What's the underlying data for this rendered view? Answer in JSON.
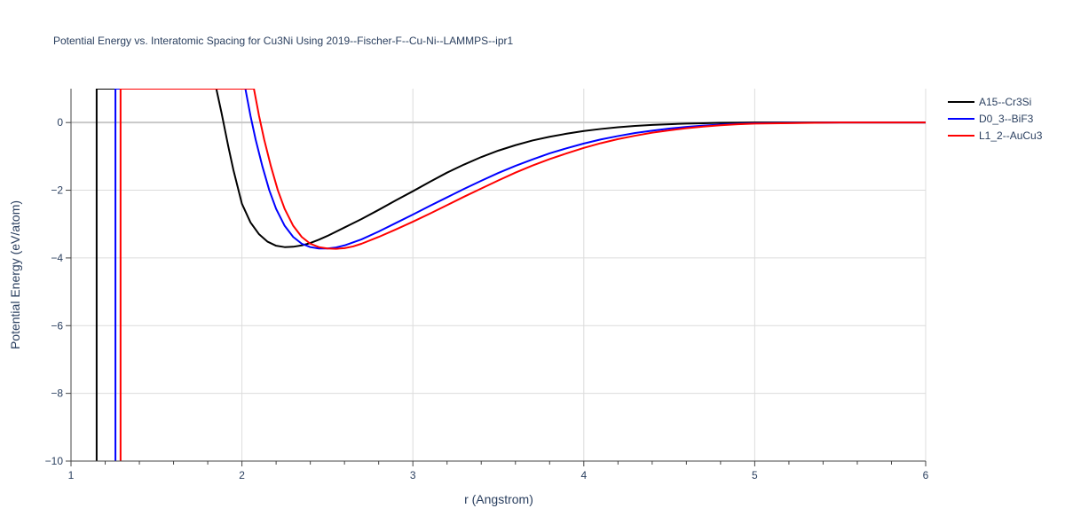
{
  "chart_data": {
    "type": "line",
    "title": "Potential Energy vs. Interatomic Spacing for Cu3Ni Using 2019--Fischer-F--Cu-Ni--LAMMPS--ipr1",
    "xlabel": "r (Angstrom)",
    "ylabel": "Potential Energy (eV/atom)",
    "xlim": [
      1,
      6
    ],
    "ylim": [
      -10,
      1
    ],
    "x_ticks": [
      1,
      2,
      3,
      4,
      5,
      6
    ],
    "x_tick_labels": [
      "1",
      "2",
      "3",
      "4",
      "5",
      "6"
    ],
    "y_ticks": [
      0,
      -2,
      -4,
      -6,
      -8,
      -10
    ],
    "y_tick_labels": [
      "0",
      "−2",
      "−4",
      "−6",
      "−8",
      "−10"
    ],
    "grid": true,
    "legend_position": "top-right",
    "series": [
      {
        "name": "A15--Cr3Si",
        "color": "#000000",
        "x": [
          1.15,
          1.15,
          1.85,
          1.88,
          1.9,
          1.92,
          1.95,
          2.0,
          2.05,
          2.1,
          2.15,
          2.2,
          2.25,
          2.3,
          2.35,
          2.4,
          2.45,
          2.5,
          2.6,
          2.7,
          2.8,
          2.9,
          3.0,
          3.1,
          3.2,
          3.3,
          3.4,
          3.5,
          3.6,
          3.7,
          3.8,
          3.9,
          4.0,
          4.1,
          4.2,
          4.3,
          4.4,
          4.5,
          4.6,
          4.7,
          4.8,
          4.9,
          5.0,
          5.5,
          6.0
        ],
        "y": [
          -10.0,
          1.0,
          1.0,
          0.3,
          -0.2,
          -0.7,
          -1.4,
          -2.4,
          -2.95,
          -3.3,
          -3.52,
          -3.64,
          -3.68,
          -3.67,
          -3.63,
          -3.56,
          -3.46,
          -3.35,
          -3.1,
          -2.85,
          -2.58,
          -2.3,
          -2.03,
          -1.75,
          -1.48,
          -1.24,
          -1.02,
          -0.83,
          -0.67,
          -0.53,
          -0.42,
          -0.33,
          -0.25,
          -0.19,
          -0.14,
          -0.1,
          -0.07,
          -0.05,
          -0.03,
          -0.02,
          -0.01,
          -0.005,
          0.0,
          0.0,
          0.0
        ]
      },
      {
        "name": "D0_3--BiF3",
        "color": "#0000ff",
        "x": [
          1.26,
          1.26,
          2.02,
          2.05,
          2.08,
          2.12,
          2.16,
          2.2,
          2.25,
          2.3,
          2.35,
          2.4,
          2.45,
          2.5,
          2.55,
          2.6,
          2.7,
          2.8,
          2.9,
          3.0,
          3.1,
          3.2,
          3.3,
          3.4,
          3.5,
          3.6,
          3.7,
          3.8,
          3.9,
          4.0,
          4.1,
          4.2,
          4.3,
          4.4,
          4.5,
          4.6,
          4.7,
          4.8,
          4.9,
          5.0,
          5.5,
          6.0
        ],
        "y": [
          -10.0,
          1.0,
          1.0,
          0.2,
          -0.5,
          -1.3,
          -2.0,
          -2.55,
          -3.05,
          -3.38,
          -3.58,
          -3.68,
          -3.72,
          -3.72,
          -3.69,
          -3.63,
          -3.45,
          -3.22,
          -2.97,
          -2.72,
          -2.46,
          -2.21,
          -1.96,
          -1.72,
          -1.49,
          -1.28,
          -1.09,
          -0.91,
          -0.76,
          -0.62,
          -0.5,
          -0.4,
          -0.31,
          -0.24,
          -0.18,
          -0.13,
          -0.09,
          -0.06,
          -0.04,
          -0.02,
          0.0,
          0.0
        ]
      },
      {
        "name": "L1_2--AuCu3",
        "color": "#ff0000",
        "x": [
          1.29,
          1.29,
          2.07,
          2.1,
          2.13,
          2.17,
          2.21,
          2.25,
          2.3,
          2.35,
          2.4,
          2.45,
          2.5,
          2.55,
          2.6,
          2.65,
          2.7,
          2.8,
          2.9,
          3.0,
          3.1,
          3.2,
          3.3,
          3.4,
          3.5,
          3.6,
          3.7,
          3.8,
          3.9,
          4.0,
          4.1,
          4.2,
          4.3,
          4.4,
          4.5,
          4.6,
          4.7,
          4.8,
          4.9,
          5.0,
          5.5,
          6.0
        ],
        "y": [
          -10.0,
          1.0,
          1.0,
          0.2,
          -0.5,
          -1.3,
          -2.0,
          -2.55,
          -3.05,
          -3.38,
          -3.58,
          -3.68,
          -3.72,
          -3.73,
          -3.71,
          -3.66,
          -3.58,
          -3.38,
          -3.16,
          -2.93,
          -2.69,
          -2.44,
          -2.19,
          -1.95,
          -1.71,
          -1.48,
          -1.27,
          -1.08,
          -0.91,
          -0.75,
          -0.61,
          -0.49,
          -0.39,
          -0.3,
          -0.23,
          -0.17,
          -0.12,
          -0.08,
          -0.05,
          -0.03,
          0.0,
          0.0
        ]
      }
    ]
  }
}
